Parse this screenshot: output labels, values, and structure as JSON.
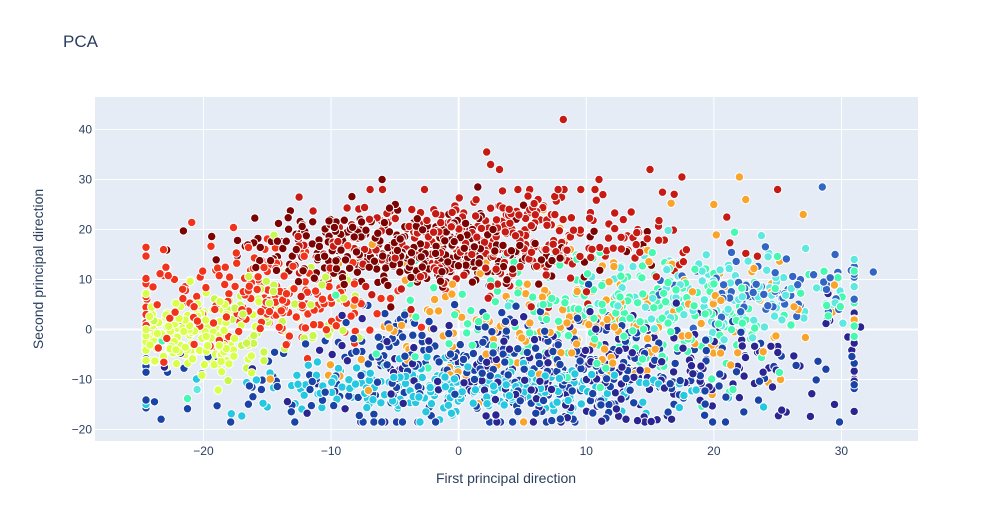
{
  "title": "PCA",
  "chart_data": {
    "type": "scatter",
    "title": "PCA",
    "xlabel": "First principal direction",
    "ylabel": "Second principal direction",
    "xlim": [
      -28.5,
      36
    ],
    "ylim": [
      -22.3,
      46.5
    ],
    "xticks": [
      -20,
      -10,
      0,
      10,
      20,
      30
    ],
    "yticks": [
      -20,
      -10,
      0,
      10,
      20,
      30,
      40
    ],
    "xtick_labels": [
      "−20",
      "−10",
      "0",
      "10",
      "20",
      "30"
    ],
    "ytick_labels": [
      "−20",
      "−10",
      "0",
      "10",
      "20",
      "30",
      "40"
    ],
    "grid": true,
    "legend": "none",
    "colors": {
      "plot_bg": "#e5ecf6",
      "grid": "#ffffff",
      "text": "#2a3f5f",
      "marker_edge": "#ffffff"
    },
    "series": [
      {
        "color": "#d9ff4a",
        "center": [
          -21,
          -1
        ],
        "spread": [
          2.6,
          4.2
        ],
        "n": 160
      },
      {
        "color": "#c8f74a",
        "center": [
          -14,
          4
        ],
        "spread": [
          3.5,
          5.5
        ],
        "n": 60
      },
      {
        "color": "#f0331a",
        "center": [
          -15,
          6
        ],
        "spread": [
          5.5,
          5.5
        ],
        "n": 230
      },
      {
        "color": "#7a0403",
        "center": [
          -4,
          16
        ],
        "spread": [
          6.5,
          3.5
        ],
        "n": 380
      },
      {
        "color": "#c51b14",
        "center": [
          3,
          18
        ],
        "spread": [
          7,
          5
        ],
        "n": 330
      },
      {
        "color": "#f9a52c",
        "center": [
          10,
          2
        ],
        "spread": [
          10,
          7
        ],
        "n": 200
      },
      {
        "color": "#46f8b0",
        "center": [
          14,
          3
        ],
        "spread": [
          9,
          6
        ],
        "n": 240
      },
      {
        "color": "#5ee8e0",
        "center": [
          20,
          7
        ],
        "spread": [
          6,
          5
        ],
        "n": 120
      },
      {
        "color": "#25c8e0",
        "center": [
          0,
          -12
        ],
        "spread": [
          9,
          3
        ],
        "n": 260
      },
      {
        "color": "#1b43a6",
        "center": [
          4,
          -8
        ],
        "spread": [
          12,
          6
        ],
        "n": 380
      },
      {
        "color": "#2a2591",
        "center": [
          10,
          -8
        ],
        "spread": [
          10,
          5.5
        ],
        "n": 270
      },
      {
        "color": "#3366c4",
        "center": [
          24,
          8
        ],
        "spread": [
          4,
          4
        ],
        "n": 70
      }
    ],
    "outliers": [
      {
        "x": 8.2,
        "y": 42,
        "color": "#c51b14"
      },
      {
        "x": 2.2,
        "y": 35.5,
        "color": "#c51b14"
      },
      {
        "x": 2.5,
        "y": 33,
        "color": "#c51b14"
      },
      {
        "x": 3.2,
        "y": 32,
        "color": "#c51b14"
      },
      {
        "x": -6,
        "y": 30,
        "color": "#7a0403"
      },
      {
        "x": 32.5,
        "y": 11.5,
        "color": "#3366c4"
      },
      {
        "x": 31.5,
        "y": 0.5,
        "color": "#2a2591"
      },
      {
        "x": 30.5,
        "y": -1.5,
        "color": "#2a2591"
      },
      {
        "x": 28.5,
        "y": 28.5,
        "color": "#3366c4"
      },
      {
        "x": 22,
        "y": 30.5,
        "color": "#f9a52c"
      },
      {
        "x": 22.5,
        "y": 26,
        "color": "#f9a52c"
      },
      {
        "x": 17.5,
        "y": 30.5,
        "color": "#c51b14"
      },
      {
        "x": 15,
        "y": 32,
        "color": "#c51b14"
      },
      {
        "x": -20.5,
        "y": -12,
        "color": "#5ee8e0"
      },
      {
        "x": -24,
        "y": 3,
        "color": "#d9ff4a"
      },
      {
        "x": 21.5,
        "y": -12,
        "color": "#46f8b0"
      },
      {
        "x": 29.5,
        "y": 15,
        "color": "#3366c4"
      },
      {
        "x": 27,
        "y": 23,
        "color": "#f9a52c"
      },
      {
        "x": 20,
        "y": 25,
        "color": "#f9a52c"
      },
      {
        "x": 25,
        "y": 28,
        "color": "#c51b14"
      },
      {
        "x": 11,
        "y": 30,
        "color": "#c51b14"
      },
      {
        "x": 1.5,
        "y": 28.5,
        "color": "#7a0403"
      }
    ]
  }
}
